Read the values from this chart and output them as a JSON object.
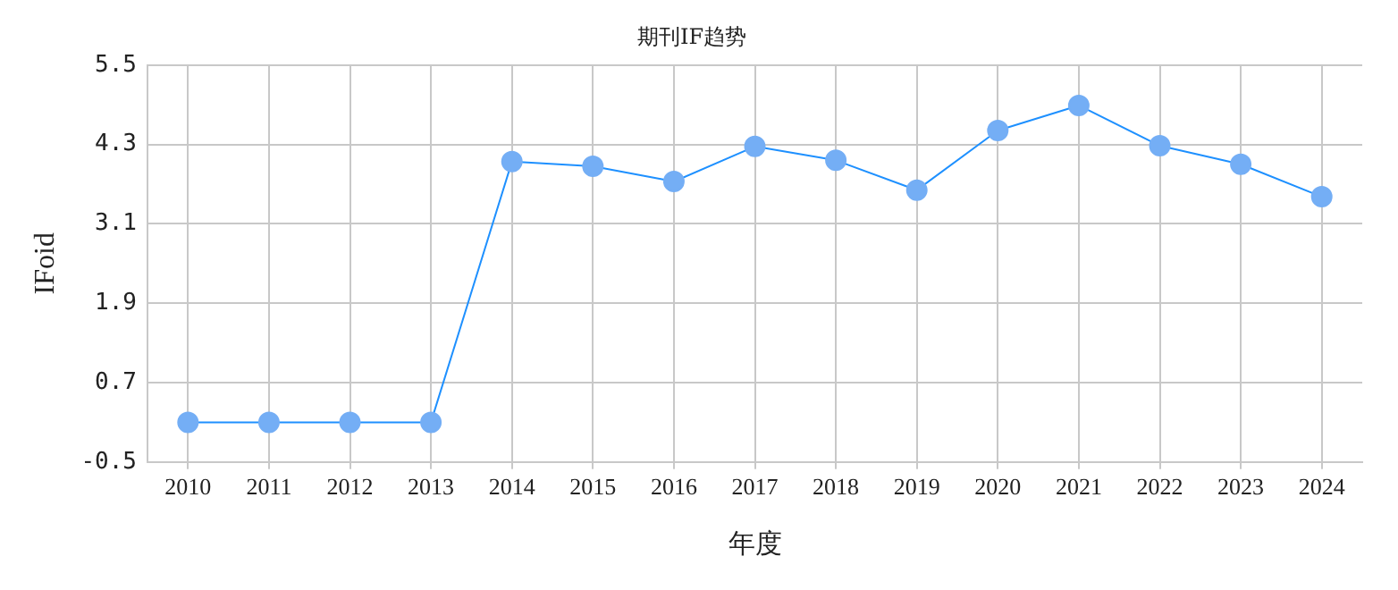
{
  "chart_data": {
    "type": "line",
    "title": "期刊IF趋势",
    "xlabel": "年度",
    "ylabel": "IFoid",
    "categories": [
      "2010",
      "2011",
      "2012",
      "2013",
      "2014",
      "2015",
      "2016",
      "2017",
      "2018",
      "2019",
      "2020",
      "2021",
      "2022",
      "2023",
      "2024"
    ],
    "series": [
      {
        "color": "#1e90ff",
        "values": [
          0.1,
          0.1,
          0.1,
          0.1,
          4.04,
          3.97,
          3.74,
          4.27,
          4.06,
          3.61,
          4.51,
          4.89,
          4.28,
          4.0,
          3.51
        ]
      }
    ],
    "ylim": [
      -0.5,
      5.5
    ],
    "yticks": [
      -0.5,
      0.7,
      1.9,
      3.1,
      4.3,
      5.5
    ],
    "grid": true,
    "legend": false,
    "marker": "circle",
    "line_style": "solid"
  }
}
